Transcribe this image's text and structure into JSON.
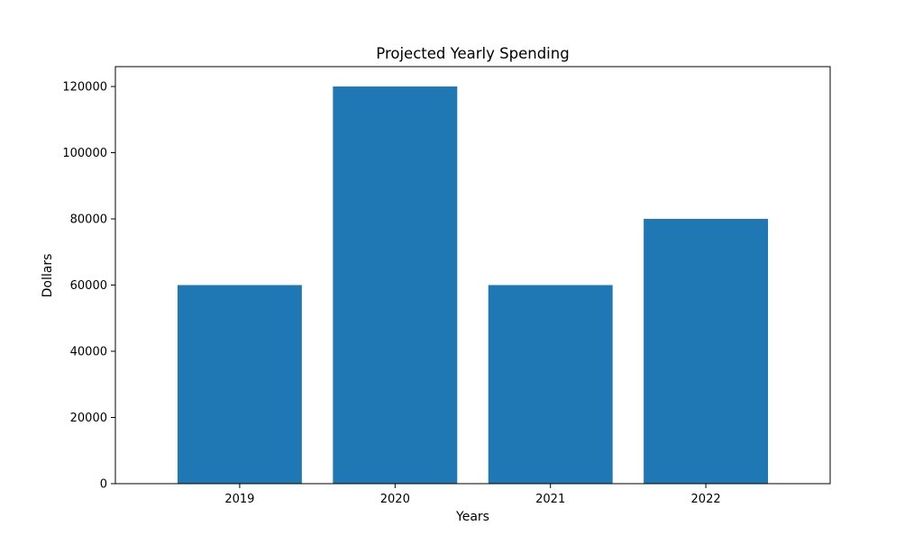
{
  "chart_data": {
    "type": "bar",
    "title": "Projected Yearly Spending",
    "xlabel": "Years",
    "ylabel": "Dollars",
    "categories": [
      "2019",
      "2020",
      "2021",
      "2022"
    ],
    "values": [
      60000,
      120000,
      60000,
      80000
    ],
    "ylim": [
      0,
      126000
    ],
    "yticks": [
      0,
      20000,
      40000,
      60000,
      80000,
      100000,
      120000
    ],
    "bar_color": "#1f77b4",
    "grid": false,
    "legend": "none"
  }
}
